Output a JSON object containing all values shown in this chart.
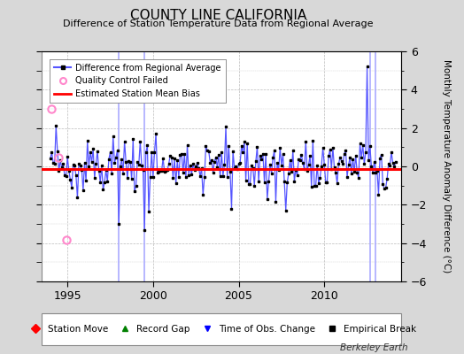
{
  "title": "COUNTY LINE CALIFORNIA",
  "subtitle": "Difference of Station Temperature Data from Regional Average",
  "ylabel_right": "Monthly Temperature Anomaly Difference (°C)",
  "xlim": [
    1993.5,
    2014.5
  ],
  "ylim": [
    -6,
    6
  ],
  "yticks": [
    -6,
    -4,
    -2,
    0,
    2,
    4,
    6
  ],
  "xticks": [
    1995,
    2000,
    2005,
    2010
  ],
  "mean_bias": -0.15,
  "bias_color": "#ff0000",
  "line_color": "#5555ff",
  "marker_color": "#000000",
  "qc_color": "#ff88cc",
  "background_color": "#d8d8d8",
  "plot_bg_color": "#ffffff",
  "watermark": "Berkeley Earth",
  "legend1_items": [
    {
      "label": "Difference from Regional Average",
      "color": "#5555ff",
      "marker": "o"
    },
    {
      "label": "Quality Control Failed",
      "color": "#ff88cc"
    },
    {
      "label": "Estimated Station Mean Bias",
      "color": "#ff0000"
    }
  ],
  "legend2_items": [
    {
      "label": "Station Move",
      "color": "#ff0000",
      "marker": "D"
    },
    {
      "label": "Record Gap",
      "color": "#008000",
      "marker": "^"
    },
    {
      "label": "Time of Obs. Change",
      "color": "#0000ff",
      "marker": "v"
    },
    {
      "label": "Empirical Break",
      "color": "#000000",
      "marker": "s"
    }
  ],
  "qc_failed_points": [
    [
      1994.08,
      3.0
    ],
    [
      1994.5,
      0.45
    ],
    [
      1994.92,
      -3.85
    ]
  ],
  "vertical_lines": [
    {
      "x": 1998.0,
      "color": "#aaaaff",
      "lw": 1.2
    },
    {
      "x": 1999.5,
      "color": "#aaaaff",
      "lw": 1.2
    },
    {
      "x": 2012.7,
      "color": "#aaaaff",
      "lw": 1.2
    },
    {
      "x": 2013.0,
      "color": "#aaaaff",
      "lw": 1.2
    }
  ]
}
